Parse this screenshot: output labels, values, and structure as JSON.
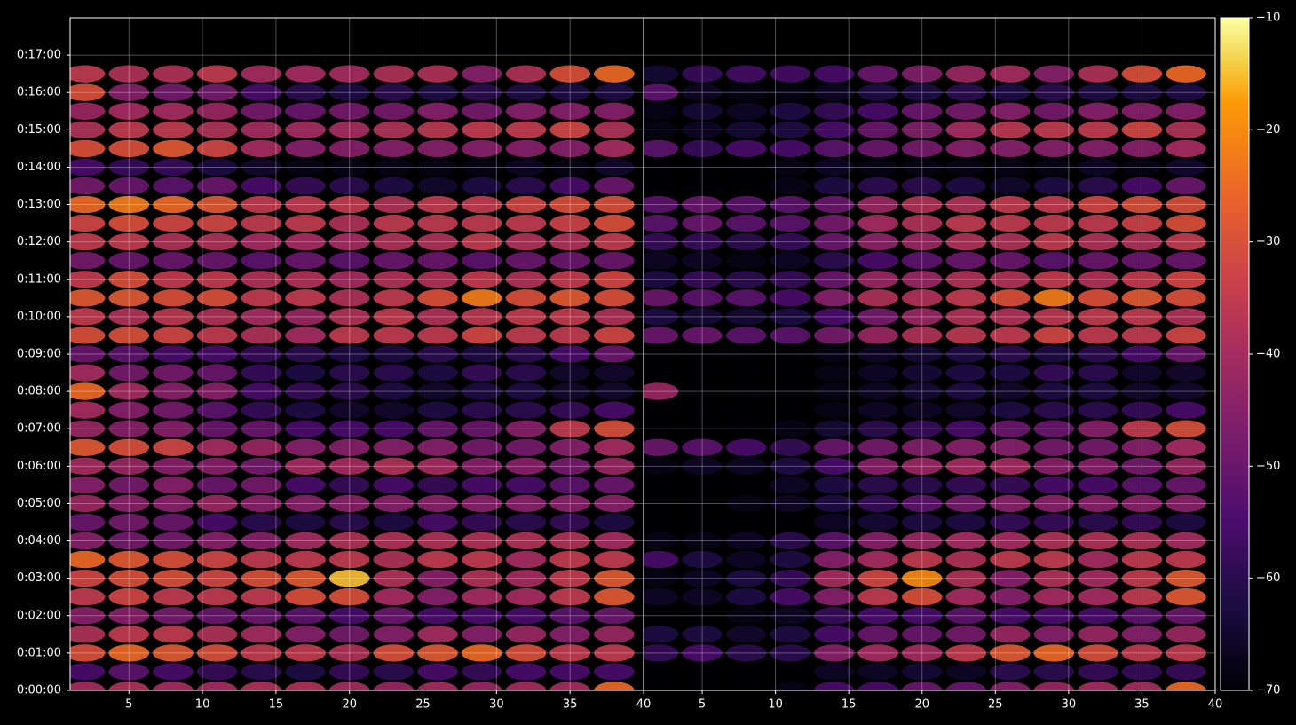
{
  "chart_data": [
    {
      "type": "heatmap",
      "x": [
        2,
        5,
        8,
        11,
        14,
        17,
        20,
        23,
        26,
        29,
        32,
        35,
        38
      ],
      "y": [
        0,
        30,
        60,
        90,
        120,
        150,
        180,
        210,
        240,
        270,
        300,
        330,
        360,
        390,
        420,
        450,
        480,
        510,
        540,
        570,
        600,
        630,
        660,
        690,
        720,
        750,
        780,
        810,
        840,
        870,
        900,
        930,
        960,
        990
      ],
      "xlim": [
        1,
        40
      ],
      "xticks": [
        5,
        10,
        15,
        20,
        25,
        30,
        35,
        40
      ],
      "ylim": [
        0,
        1080
      ],
      "yticks": [
        {
          "value": 0,
          "label": "0:00:00"
        },
        {
          "value": 60,
          "label": "0:01:00"
        },
        {
          "value": 120,
          "label": "0:02:00"
        },
        {
          "value": 180,
          "label": "0:03:00"
        },
        {
          "value": 240,
          "label": "0:04:00"
        },
        {
          "value": 300,
          "label": "0:05:00"
        },
        {
          "value": 360,
          "label": "0:06:00"
        },
        {
          "value": 420,
          "label": "0:07:00"
        },
        {
          "value": 480,
          "label": "0:08:00"
        },
        {
          "value": 540,
          "label": "0:09:00"
        },
        {
          "value": 600,
          "label": "0:10:00"
        },
        {
          "value": 660,
          "label": "0:11:00"
        },
        {
          "value": 720,
          "label": "0:12:00"
        },
        {
          "value": 780,
          "label": "0:13:00"
        },
        {
          "value": 840,
          "label": "0:14:00"
        },
        {
          "value": 900,
          "label": "0:15:00"
        },
        {
          "value": 960,
          "label": "0:16:00"
        },
        {
          "value": 1020,
          "label": "0:17:00"
        }
      ],
      "grid": true,
      "values": [
        [
          -40,
          -38,
          -40,
          -40,
          -38,
          -38,
          -40,
          -42,
          -40,
          -42,
          -40,
          -40,
          -25
        ],
        [
          -55,
          -52,
          -55,
          -58,
          -60,
          -62,
          -58,
          -60,
          -55,
          -58,
          -55,
          -55,
          -55
        ],
        [
          -30,
          -25,
          -28,
          -30,
          -35,
          -35,
          -38,
          -30,
          -28,
          -25,
          -30,
          -35,
          -35
        ],
        [
          -38,
          -35,
          -35,
          -38,
          -40,
          -45,
          -48,
          -45,
          -40,
          -45,
          -42,
          -45,
          -42
        ],
        [
          -45,
          -45,
          -48,
          -50,
          -50,
          -52,
          -55,
          -50,
          -55,
          -55,
          -55,
          -52,
          -50
        ],
        [
          -35,
          -32,
          -35,
          -35,
          -35,
          -30,
          -30,
          -40,
          -45,
          -40,
          -40,
          -35,
          -28
        ],
        [
          -32,
          -30,
          -30,
          -32,
          -30,
          -28,
          -15,
          -38,
          -45,
          -38,
          -40,
          -35,
          -28
        ],
        [
          -25,
          -28,
          -30,
          -32,
          -35,
          -35,
          -35,
          -38,
          -35,
          -35,
          -40,
          -35,
          -35
        ],
        [
          -45,
          -48,
          -48,
          -45,
          -45,
          -40,
          -38,
          -38,
          -38,
          -38,
          -38,
          -38,
          -40
        ],
        [
          -50,
          -48,
          -50,
          -55,
          -60,
          -62,
          -60,
          -62,
          -55,
          -58,
          -60,
          -58,
          -62
        ],
        [
          -42,
          -45,
          -45,
          -42,
          -45,
          -45,
          -45,
          -45,
          -45,
          -45,
          -45,
          -45,
          -45
        ],
        [
          -45,
          -48,
          -45,
          -50,
          -48,
          -55,
          -58,
          -55,
          -58,
          -55,
          -55,
          -52,
          -50
        ],
        [
          -40,
          -42,
          -45,
          -45,
          -48,
          -40,
          -40,
          -38,
          -40,
          -45,
          -45,
          -48,
          -42
        ],
        [
          -28,
          -30,
          -32,
          -40,
          -42,
          -45,
          -45,
          -45,
          -45,
          -48,
          -48,
          -45,
          -40
        ],
        [
          -42,
          -45,
          -45,
          -50,
          -50,
          -55,
          -55,
          -55,
          -50,
          -50,
          -45,
          -35,
          -30
        ],
        [
          -40,
          -45,
          -48,
          -52,
          -58,
          -62,
          -65,
          -65,
          -62,
          -60,
          -60,
          -58,
          -55
        ],
        [
          -25,
          -40,
          -45,
          -45,
          -55,
          -58,
          -60,
          -62,
          -65,
          -62,
          -62,
          -65,
          -65
        ],
        [
          -40,
          -48,
          -48,
          -50,
          -58,
          -62,
          -60,
          -60,
          -62,
          -58,
          -60,
          -65,
          -65
        ],
        [
          -50,
          -52,
          -55,
          -55,
          -58,
          -60,
          -62,
          -62,
          -60,
          -62,
          -60,
          -55,
          -50
        ],
        [
          -30,
          -30,
          -32,
          -35,
          -38,
          -40,
          -35,
          -35,
          -35,
          -32,
          -35,
          -35,
          -32
        ],
        [
          -35,
          -38,
          -36,
          -38,
          -40,
          -42,
          -38,
          -35,
          -38,
          -36,
          -35,
          -35,
          -38
        ],
        [
          -28,
          -28,
          -30,
          -30,
          -35,
          -35,
          -38,
          -35,
          -30,
          -22,
          -30,
          -28,
          -30
        ],
        [
          -35,
          -30,
          -35,
          -35,
          -38,
          -38,
          -40,
          -38,
          -38,
          -35,
          -38,
          -35,
          -32
        ],
        [
          -48,
          -50,
          -50,
          -50,
          -52,
          -50,
          -52,
          -50,
          -50,
          -52,
          -50,
          -50,
          -50
        ],
        [
          -35,
          -35,
          -38,
          -38,
          -40,
          -40,
          -40,
          -38,
          -38,
          -35,
          -38,
          -38,
          -35
        ],
        [
          -32,
          -30,
          -32,
          -32,
          -35,
          -35,
          -38,
          -35,
          -35,
          -35,
          -35,
          -33,
          -30
        ],
        [
          -25,
          -22,
          -25,
          -28,
          -35,
          -35,
          -35,
          -38,
          -35,
          -35,
          -32,
          -30,
          -30
        ],
        [
          -48,
          -50,
          -52,
          -50,
          -55,
          -58,
          -60,
          -62,
          -65,
          -62,
          -60,
          -55,
          -50
        ],
        [
          -55,
          -58,
          -58,
          -62,
          -65,
          -68,
          -68,
          -68,
          -68,
          -68,
          -66,
          -68,
          -65
        ],
        [
          -30,
          -30,
          -28,
          -32,
          -40,
          -45,
          -45,
          -45,
          -45,
          -45,
          -45,
          -45,
          -40
        ],
        [
          -38,
          -35,
          -35,
          -38,
          -40,
          -40,
          -40,
          -38,
          -36,
          -35,
          -35,
          -32,
          -38
        ],
        [
          -42,
          -40,
          -40,
          -42,
          -48,
          -50,
          -48,
          -48,
          -45,
          -48,
          -45,
          -45,
          -45
        ],
        [
          -30,
          -45,
          -48,
          -48,
          -55,
          -60,
          -62,
          -60,
          -62,
          -60,
          -62,
          -62,
          -62
        ],
        [
          -35,
          -38,
          -38,
          -35,
          -40,
          -40,
          -40,
          -38,
          -38,
          -45,
          -38,
          -30,
          -25
        ]
      ]
    },
    {
      "type": "heatmap",
      "x": [
        2,
        5,
        8,
        11,
        14,
        17,
        20,
        23,
        26,
        29,
        32,
        35,
        38
      ],
      "y": [
        0,
        30,
        60,
        90,
        120,
        150,
        180,
        210,
        240,
        270,
        300,
        330,
        360,
        390,
        420,
        450,
        480,
        510,
        540,
        570,
        600,
        630,
        660,
        690,
        720,
        750,
        780,
        810,
        840,
        870,
        900,
        930,
        960,
        990
      ],
      "xlim": [
        1,
        40
      ],
      "xticks": [
        5,
        10,
        15,
        20,
        25,
        30,
        35,
        40
      ],
      "ylim": [
        0,
        1080
      ],
      "grid": true,
      "values": [
        [
          -70,
          -70,
          -70,
          -68,
          -55,
          -55,
          -50,
          -50,
          -45,
          -42,
          -40,
          -40,
          -25
        ],
        [
          -70,
          -70,
          -70,
          -70,
          -66,
          -66,
          -64,
          -66,
          -60,
          -60,
          -58,
          -58,
          -58
        ],
        [
          -58,
          -55,
          -60,
          -60,
          -45,
          -40,
          -40,
          -35,
          -28,
          -25,
          -30,
          -35,
          -35
        ],
        [
          -62,
          -62,
          -65,
          -62,
          -55,
          -50,
          -50,
          -48,
          -42,
          -45,
          -42,
          -45,
          -42
        ],
        [
          -70,
          -70,
          -68,
          -66,
          -58,
          -55,
          -55,
          -52,
          -55,
          -55,
          -55,
          -52,
          -50
        ],
        [
          -66,
          -66,
          -62,
          -55,
          -45,
          -35,
          -30,
          -40,
          -45,
          -40,
          -40,
          -35,
          -28
        ],
        [
          -68,
          -66,
          -62,
          -58,
          -40,
          -32,
          -20,
          -38,
          -45,
          -38,
          -40,
          -35,
          -28
        ],
        [
          -55,
          -62,
          -66,
          -62,
          -45,
          -40,
          -35,
          -38,
          -35,
          -35,
          -40,
          -35,
          -35
        ],
        [
          -68,
          -68,
          -66,
          -60,
          -52,
          -45,
          -42,
          -40,
          -40,
          -38,
          -38,
          -38,
          -40
        ],
        [
          -70,
          -70,
          -70,
          -70,
          -66,
          -64,
          -62,
          -62,
          -58,
          -58,
          -60,
          -58,
          -62
        ],
        [
          -70,
          -70,
          -68,
          -66,
          -62,
          -58,
          -52,
          -48,
          -45,
          -45,
          -45,
          -45,
          -45
        ],
        [
          -70,
          -70,
          -70,
          -66,
          -62,
          -60,
          -60,
          -58,
          -58,
          -55,
          -55,
          -52,
          -50
        ],
        [
          -68,
          -66,
          -66,
          -62,
          -55,
          -45,
          -42,
          -40,
          -40,
          -45,
          -45,
          -48,
          -42
        ],
        [
          -50,
          -52,
          -55,
          -58,
          -50,
          -48,
          -46,
          -45,
          -45,
          -48,
          -48,
          -45,
          -40
        ],
        [
          -70,
          -70,
          -70,
          -68,
          -64,
          -60,
          -58,
          -55,
          -50,
          -50,
          -45,
          -35,
          -30
        ],
        [
          -70,
          -70,
          -70,
          -70,
          -68,
          -66,
          -66,
          -65,
          -62,
          -60,
          -60,
          -58,
          -55
        ],
        [
          -42,
          -70,
          -70,
          -70,
          -68,
          -66,
          -64,
          -62,
          -65,
          -62,
          -62,
          -65,
          -65
        ],
        [
          -70,
          -70,
          -70,
          -70,
          -68,
          -66,
          -64,
          -62,
          -62,
          -58,
          -60,
          -65,
          -65
        ],
        [
          -70,
          -70,
          -70,
          -70,
          -68,
          -66,
          -64,
          -62,
          -60,
          -62,
          -60,
          -55,
          -50
        ],
        [
          -50,
          -50,
          -52,
          -52,
          -48,
          -42,
          -38,
          -36,
          -35,
          -32,
          -35,
          -35,
          -32
        ],
        [
          -62,
          -64,
          -64,
          -62,
          -55,
          -48,
          -42,
          -38,
          -38,
          -36,
          -35,
          -35,
          -38
        ],
        [
          -50,
          -52,
          -52,
          -55,
          -45,
          -38,
          -38,
          -35,
          -30,
          -22,
          -30,
          -28,
          -30
        ],
        [
          -62,
          -58,
          -60,
          -58,
          -50,
          -42,
          -42,
          -38,
          -38,
          -35,
          -38,
          -35,
          -32
        ],
        [
          -66,
          -66,
          -68,
          -66,
          -60,
          -55,
          -52,
          -50,
          -50,
          -52,
          -50,
          -50,
          -50
        ],
        [
          -58,
          -58,
          -60,
          -58,
          -50,
          -44,
          -42,
          -38,
          -38,
          -35,
          -38,
          -38,
          -35
        ],
        [
          -52,
          -50,
          -52,
          -52,
          -48,
          -40,
          -38,
          -35,
          -35,
          -35,
          -35,
          -33,
          -30
        ],
        [
          -52,
          -50,
          -52,
          -52,
          -50,
          -42,
          -38,
          -38,
          -35,
          -35,
          -32,
          -30,
          -30
        ],
        [
          -70,
          -70,
          -70,
          -68,
          -62,
          -60,
          -60,
          -62,
          -65,
          -62,
          -60,
          -55,
          -50
        ],
        [
          -70,
          -70,
          -70,
          -68,
          -66,
          -68,
          -68,
          -68,
          -68,
          -68,
          -66,
          -68,
          -65
        ],
        [
          -52,
          -58,
          -55,
          -55,
          -52,
          -50,
          -48,
          -45,
          -45,
          -45,
          -45,
          -45,
          -40
        ],
        [
          -68,
          -66,
          -64,
          -62,
          -55,
          -50,
          -46,
          -40,
          -36,
          -35,
          -35,
          -32,
          -38
        ],
        [
          -68,
          -64,
          -66,
          -62,
          -58,
          -55,
          -50,
          -48,
          -45,
          -48,
          -45,
          -45,
          -45
        ],
        [
          -52,
          -66,
          -68,
          -68,
          -66,
          -62,
          -62,
          -60,
          -62,
          -60,
          -62,
          -62,
          -62
        ],
        [
          -64,
          -58,
          -56,
          -56,
          -55,
          -50,
          -46,
          -42,
          -40,
          -45,
          -38,
          -30,
          -25
        ]
      ]
    }
  ],
  "colorbar": {
    "colormap": "inferno",
    "zlim": [
      -70,
      -10
    ],
    "zticks": [
      {
        "value": -70,
        "label": "−70"
      },
      {
        "value": -60,
        "label": "−60"
      },
      {
        "value": -50,
        "label": "−50"
      },
      {
        "value": -40,
        "label": "−40"
      },
      {
        "value": -30,
        "label": "−30"
      },
      {
        "value": -20,
        "label": "−20"
      },
      {
        "value": -10,
        "label": "−10"
      }
    ]
  }
}
